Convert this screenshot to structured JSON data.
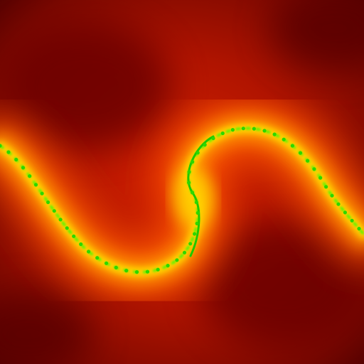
{
  "image": {
    "subject": "spiral-fractal",
    "colors": {
      "background_dark": "#4a0000",
      "deep_red": "#8c0a00",
      "red": "#c41a00",
      "orange_red": "#e83a00",
      "orange": "#ff7a00",
      "yellow": "#ffd400",
      "green": "#3cff00",
      "dark_green": "#009a00"
    }
  }
}
